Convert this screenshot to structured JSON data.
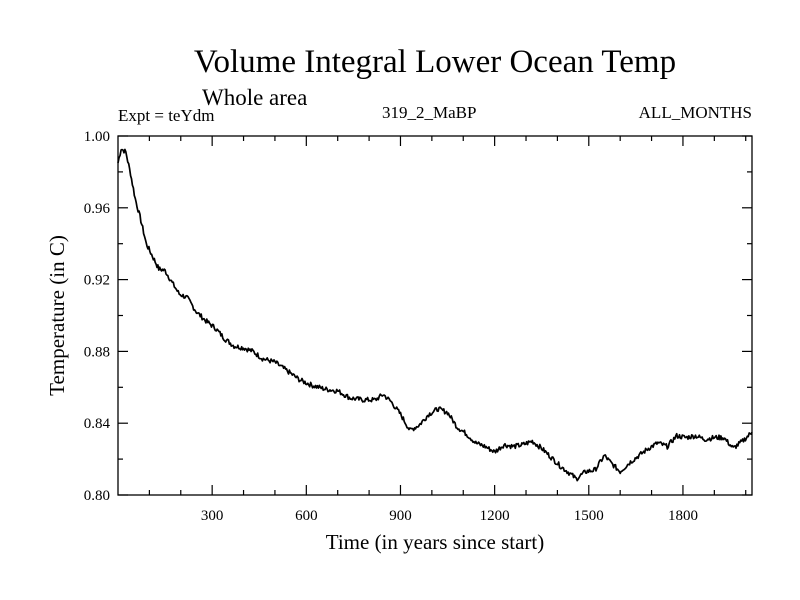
{
  "header": {
    "title": "Volume Integral Lower Ocean Temp",
    "subtitle": "Whole area",
    "expt": "Expt = teYdm",
    "run": "319_2_MaBP",
    "months": "ALL_MONTHS"
  },
  "chart_data": {
    "type": "line",
    "title": "Volume Integral Lower Ocean Temp",
    "subtitle": "Whole area",
    "xlabel": "Time (in years since start)",
    "ylabel": "Temperature (in C)",
    "xlim": [
      0,
      2020
    ],
    "ylim": [
      0.8,
      1.0
    ],
    "xticks": [
      300,
      600,
      900,
      1200,
      1500,
      1800
    ],
    "yticks": [
      0.8,
      0.84,
      0.88,
      0.92,
      0.96,
      1.0
    ],
    "ytick_labels": [
      "0.80",
      "0.84",
      "0.88",
      "0.92",
      "0.96",
      "1.00"
    ],
    "grid": false,
    "series": [
      {
        "name": "Volume integral lower ocean temperature",
        "color": "#000000",
        "x": [
          0,
          10,
          25,
          40,
          55,
          70,
          90,
          110,
          130,
          150,
          170,
          195,
          220,
          250,
          280,
          310,
          340,
          370,
          400,
          430,
          460,
          500,
          540,
          580,
          620,
          660,
          700,
          740,
          780,
          820,
          845,
          870,
          900,
          930,
          960,
          990,
          1020,
          1050,
          1080,
          1110,
          1140,
          1170,
          1200,
          1230,
          1260,
          1290,
          1320,
          1350,
          1380,
          1410,
          1440,
          1460,
          1490,
          1520,
          1550,
          1570,
          1600,
          1630,
          1660,
          1690,
          1720,
          1750,
          1780,
          1810,
          1840,
          1870,
          1900,
          1930,
          1960,
          1990,
          2020
        ],
        "y": [
          0.985,
          0.993,
          0.991,
          0.979,
          0.965,
          0.955,
          0.94,
          0.933,
          0.926,
          0.925,
          0.919,
          0.912,
          0.91,
          0.902,
          0.897,
          0.893,
          0.887,
          0.883,
          0.882,
          0.88,
          0.876,
          0.874,
          0.869,
          0.864,
          0.861,
          0.859,
          0.858,
          0.854,
          0.853,
          0.853,
          0.856,
          0.852,
          0.845,
          0.836,
          0.839,
          0.845,
          0.848,
          0.846,
          0.838,
          0.834,
          0.829,
          0.827,
          0.824,
          0.828,
          0.827,
          0.828,
          0.83,
          0.826,
          0.821,
          0.816,
          0.812,
          0.809,
          0.813,
          0.814,
          0.822,
          0.818,
          0.813,
          0.818,
          0.822,
          0.826,
          0.829,
          0.827,
          0.833,
          0.832,
          0.833,
          0.831,
          0.832,
          0.832,
          0.826,
          0.83,
          0.835
        ]
      }
    ]
  }
}
